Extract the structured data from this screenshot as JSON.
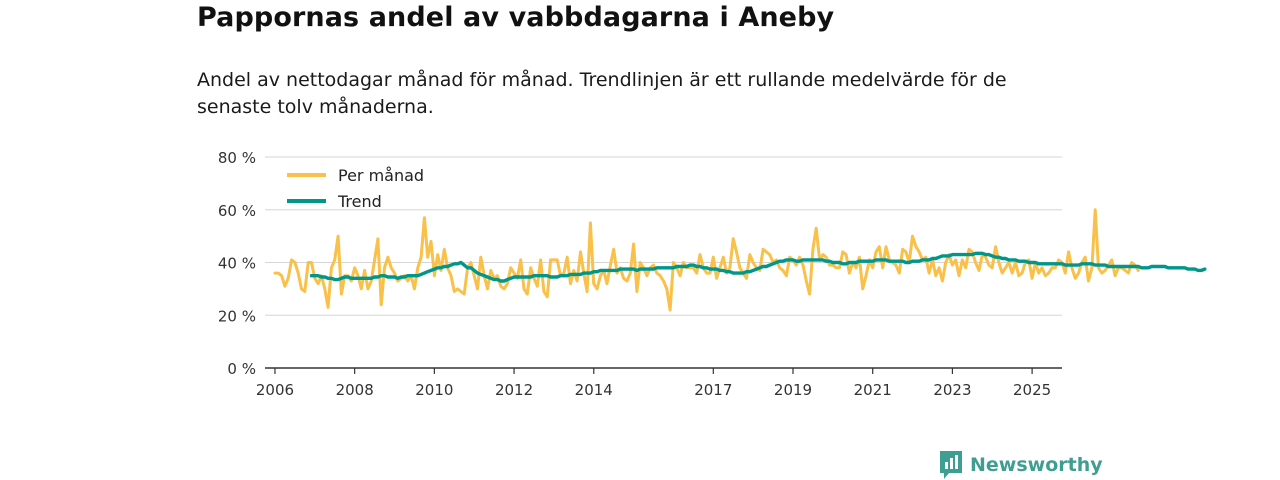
{
  "header": {
    "title": "Pappornas andel av vabbdagarna i Aneby",
    "subtitle": "Andel av nettodagar månad för månad. Trendlinjen är ett rullande medelvärde för de senaste tolv månaderna."
  },
  "brand": {
    "name": "Newsworthy",
    "icon": "newsworthy-logo-icon",
    "color": "#3f9e92"
  },
  "chart_data": {
    "type": "line",
    "title": "Pappornas andel av vabbdagarna i Aneby",
    "xlabel": "",
    "ylabel": "",
    "xlim": [
      2005.75,
      2025.75
    ],
    "ylim": [
      0,
      80
    ],
    "grid": true,
    "legend_position": "top-left",
    "y_ticks": [
      0,
      20,
      40,
      60,
      80
    ],
    "y_tick_labels": [
      "0 %",
      "20 %",
      "40 %",
      "60 %",
      "80 %"
    ],
    "x_ticks": [
      2006,
      2008,
      2010,
      2012,
      2014,
      2017,
      2019,
      2021,
      2023,
      2025
    ],
    "x_tick_labels": [
      "2006",
      "2008",
      "2010",
      "2012",
      "2014",
      "2017",
      "2019",
      "2021",
      "2023",
      "2025"
    ],
    "series": [
      {
        "name": "Per månad",
        "color": "#f9c04a",
        "x_start": 2006.0,
        "x_step": 0.08333,
        "values": [
          36,
          36,
          35,
          31,
          34,
          41,
          40,
          36,
          30,
          29,
          40,
          40,
          34,
          32,
          35,
          30,
          23,
          38,
          41,
          50,
          28,
          35,
          35,
          33,
          38,
          35,
          30,
          37,
          30,
          33,
          41,
          49,
          24,
          38,
          42,
          38,
          36,
          33,
          34,
          35,
          33,
          35,
          30,
          38,
          42,
          57,
          42,
          48,
          35,
          43,
          37,
          45,
          38,
          35,
          29,
          30,
          29,
          28,
          38,
          40,
          35,
          30,
          42,
          35,
          30,
          37,
          34,
          35,
          31,
          30,
          32,
          38,
          36,
          34,
          41,
          30,
          28,
          38,
          34,
          31,
          41,
          29,
          27,
          41,
          41,
          41,
          35,
          36,
          42,
          32,
          37,
          33,
          44,
          36,
          29,
          55,
          32,
          30,
          35,
          37,
          32,
          39,
          45,
          36,
          38,
          34,
          33,
          36,
          47,
          29,
          40,
          38,
          35,
          38,
          39,
          36,
          35,
          33,
          30,
          22,
          40,
          38,
          35,
          40,
          38,
          38,
          38,
          36,
          43,
          38,
          36,
          36,
          42,
          34,
          38,
          42,
          36,
          38,
          49,
          44,
          38,
          36,
          34,
          43,
          40,
          38,
          37,
          45,
          44,
          43,
          40,
          41,
          38,
          37,
          35,
          42,
          41,
          39,
          42,
          39,
          33,
          28,
          45,
          53,
          41,
          43,
          42,
          39,
          39,
          38,
          38,
          44,
          43,
          36,
          40,
          38,
          42,
          30,
          35,
          41,
          38,
          44,
          46,
          38,
          46,
          41,
          40,
          39,
          36,
          45,
          44,
          40,
          50,
          46,
          44,
          41,
          42,
          36,
          41,
          35,
          38,
          33,
          40,
          43,
          39,
          41,
          35,
          41,
          38,
          45,
          44,
          40,
          37,
          43,
          42,
          39,
          38,
          46,
          40,
          36,
          38,
          40,
          36,
          40,
          35,
          36,
          40,
          41,
          34,
          40,
          36,
          38,
          35,
          36,
          38,
          38,
          41,
          40,
          36,
          44,
          38,
          34,
          36,
          40,
          42,
          33,
          38,
          60,
          38,
          36,
          37,
          39,
          41,
          35,
          38,
          38,
          37,
          36,
          40,
          39,
          37
        ]
      },
      {
        "name": "Trend",
        "color": "#00968a",
        "x_start": 2006.9167,
        "x_step": 0.08333,
        "values": [
          35,
          35,
          35,
          34.5,
          34.5,
          34,
          34,
          33.5,
          33.5,
          34,
          34.5,
          34.5,
          34,
          34,
          34,
          34,
          34,
          34,
          34,
          34.5,
          34.5,
          35,
          35,
          34.5,
          34.5,
          34.5,
          34,
          34.5,
          34.5,
          35,
          35,
          35,
          35,
          35.5,
          36,
          36.5,
          37,
          37.5,
          38,
          38,
          38.5,
          38.5,
          39,
          39.5,
          39.5,
          40,
          39,
          38,
          38,
          37,
          36,
          35.5,
          35,
          34.5,
          34,
          33.5,
          33.5,
          33,
          33,
          33.5,
          34,
          34.5,
          34.5,
          34.5,
          34.5,
          34.5,
          34.5,
          35,
          35,
          35,
          35,
          35,
          34.5,
          34.5,
          34.5,
          35,
          35,
          35,
          35.5,
          35.5,
          35.5,
          35.5,
          36,
          36,
          36,
          36.5,
          36.5,
          37,
          37,
          37,
          37,
          37,
          37,
          37.5,
          37.5,
          37.5,
          37.5,
          37.5,
          37,
          37.5,
          37.5,
          37.5,
          37.5,
          37.5,
          38,
          38,
          38,
          38,
          38,
          38,
          38.5,
          38.5,
          38.5,
          38.5,
          39,
          39,
          38.5,
          38.5,
          38,
          38,
          37.5,
          37.5,
          37.5,
          37,
          37,
          36.5,
          36.5,
          36,
          36,
          36,
          36,
          36.5,
          36.5,
          37,
          37.5,
          38,
          38.5,
          38.5,
          39,
          39.5,
          40,
          40.5,
          40.5,
          41,
          41,
          41,
          40.5,
          40.5,
          41,
          41,
          41,
          41,
          41,
          41,
          41,
          40.5,
          40.5,
          40,
          40,
          40,
          39.5,
          39.5,
          40,
          40,
          40,
          40.5,
          40.5,
          40.5,
          40.5,
          40.5,
          41,
          41,
          41,
          41,
          40.5,
          40.5,
          40.5,
          40.5,
          40.5,
          40,
          40,
          40.5,
          40.5,
          40.5,
          41,
          41,
          41,
          41.5,
          41.5,
          42,
          42.5,
          42.5,
          42.5,
          43,
          43,
          43,
          43,
          43,
          43,
          43,
          43.5,
          43.5,
          43.5,
          43,
          43,
          42.5,
          42,
          42,
          41.5,
          41.5,
          41,
          41,
          41,
          40.5,
          40.5,
          40.5,
          40,
          40,
          40,
          39.5,
          39.5,
          39.5,
          39.5,
          39.5,
          39.5,
          39.5,
          39.5,
          39,
          39,
          39,
          39,
          39,
          39.5,
          39.5,
          39.5,
          39.5,
          39,
          39,
          39,
          39,
          38.5,
          38.5,
          38.5,
          38.5,
          38.5,
          38.5,
          38.5,
          38.5,
          38.5,
          38.5,
          38,
          38,
          38,
          38.5,
          38.5,
          38.5,
          38.5,
          38.5,
          38,
          38,
          38,
          38,
          38,
          38,
          37.5,
          37.5,
          37.5,
          37,
          37,
          37.5
        ]
      }
    ]
  }
}
